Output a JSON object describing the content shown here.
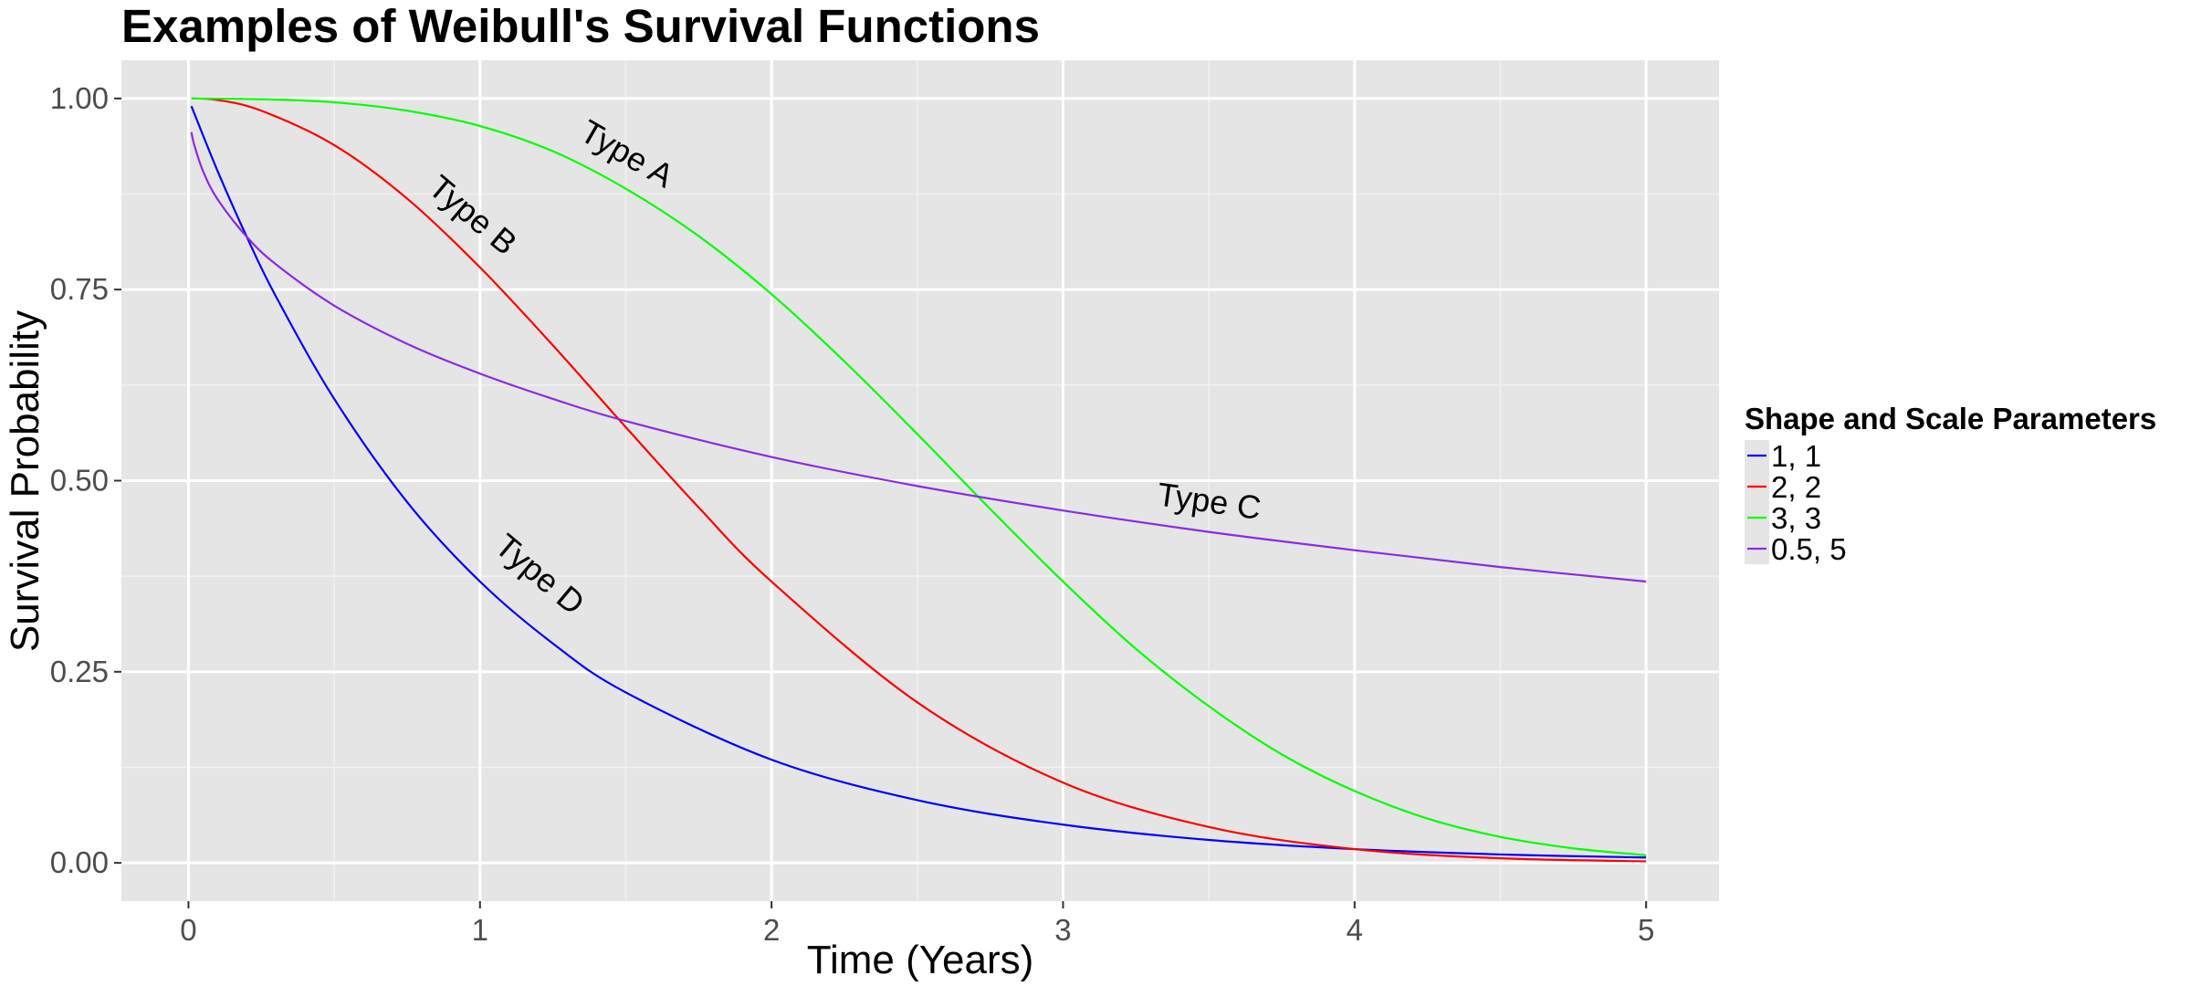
{
  "chart_data": {
    "type": "line",
    "title": "Examples of Weibull's Survival Functions",
    "xlabel": "Time (Years)",
    "ylabel": "Survival Probability",
    "xlim": [
      -0.23,
      5.25
    ],
    "ylim": [
      -0.05,
      1.05
    ],
    "x_ticks": [
      0,
      1,
      2,
      3,
      4,
      5
    ],
    "x_tick_labels": [
      "0",
      "1",
      "2",
      "3",
      "4",
      "5"
    ],
    "y_ticks": [
      0,
      0.25,
      0.5,
      0.75,
      1.0
    ],
    "y_tick_labels": [
      "0.00",
      "0.25",
      "0.50",
      "0.75",
      "1.00"
    ],
    "grid": true,
    "panel_background": "#e5e5e5",
    "legend": {
      "title": "Shape and Scale Parameters",
      "position": "right"
    },
    "series": [
      {
        "name": "1, 1",
        "color": "#0000ff",
        "x": [
          0.01,
          0.1,
          0.2,
          0.3,
          0.5,
          0.75,
          1.0,
          1.25,
          1.5,
          2.0,
          2.5,
          3.0,
          3.5,
          4.0,
          4.5,
          5.0
        ],
        "y": [
          0.99,
          0.905,
          0.819,
          0.741,
          0.607,
          0.472,
          0.368,
          0.287,
          0.223,
          0.135,
          0.082,
          0.05,
          0.03,
          0.018,
          0.011,
          0.007
        ]
      },
      {
        "name": "2, 2",
        "color": "#ff0000",
        "x": [
          0.01,
          0.1,
          0.25,
          0.5,
          0.75,
          1.0,
          1.25,
          1.5,
          1.75,
          2.0,
          2.5,
          3.0,
          3.5,
          4.0,
          4.5,
          5.0
        ],
        "y": [
          1.0,
          0.998,
          0.984,
          0.939,
          0.869,
          0.779,
          0.677,
          0.57,
          0.465,
          0.368,
          0.21,
          0.105,
          0.047,
          0.018,
          0.006,
          0.002
        ]
      },
      {
        "name": "3, 3",
        "color": "#00ff00",
        "x": [
          0.01,
          0.25,
          0.5,
          0.75,
          1.0,
          1.25,
          1.5,
          1.75,
          2.0,
          2.25,
          2.5,
          2.75,
          3.0,
          3.25,
          3.5,
          3.75,
          4.0,
          4.25,
          4.5,
          4.75,
          5.0
        ],
        "y": [
          1.0,
          0.999,
          0.995,
          0.984,
          0.964,
          0.931,
          0.882,
          0.82,
          0.744,
          0.656,
          0.561,
          0.463,
          0.368,
          0.28,
          0.205,
          0.142,
          0.094,
          0.058,
          0.034,
          0.019,
          0.01
        ]
      },
      {
        "name": "0.5, 5",
        "color": "#8a2be2",
        "x": [
          0.01,
          0.02,
          0.05,
          0.1,
          0.2,
          0.3,
          0.5,
          0.75,
          1.0,
          1.25,
          1.5,
          2.0,
          2.5,
          3.0,
          3.5,
          4.0,
          4.5,
          5.0
        ],
        "y": [
          0.956,
          0.939,
          0.905,
          0.868,
          0.819,
          0.783,
          0.729,
          0.679,
          0.64,
          0.607,
          0.578,
          0.531,
          0.493,
          0.461,
          0.433,
          0.409,
          0.387,
          0.368
        ]
      }
    ],
    "annotations": [
      {
        "text": "Type A",
        "x": 1.5,
        "y": 0.925,
        "angle": 30
      },
      {
        "text": "Type B",
        "x": 0.97,
        "y": 0.845,
        "angle": 40
      },
      {
        "text": "Type C",
        "x": 3.5,
        "y": 0.47,
        "angle": 8
      },
      {
        "text": "Type D",
        "x": 1.2,
        "y": 0.375,
        "angle": 40
      }
    ]
  }
}
